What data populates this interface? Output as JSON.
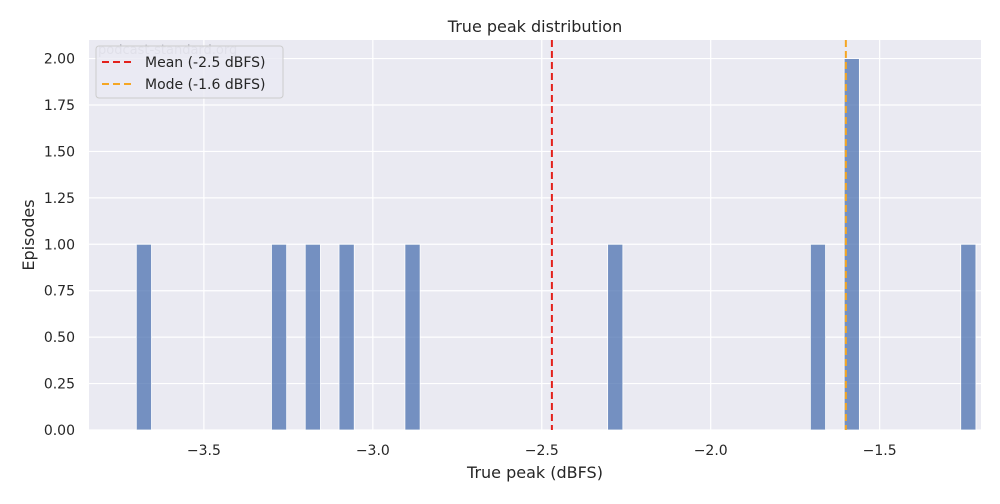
{
  "chart_data": {
    "type": "bar",
    "title": "True peak distribution",
    "xlabel": "True peak (dBFS)",
    "ylabel": "Episodes",
    "xlim": [
      -3.84,
      -1.2
    ],
    "ylim": [
      0,
      2.1
    ],
    "x_ticks": [
      {
        "value": -3.5,
        "label": "−3.5"
      },
      {
        "value": -3.0,
        "label": "−3.0"
      },
      {
        "value": -2.5,
        "label": "−2.5"
      },
      {
        "value": -2.0,
        "label": "−2.0"
      },
      {
        "value": -1.5,
        "label": "−1.5"
      }
    ],
    "y_ticks": [
      {
        "value": 0,
        "label": "0.00"
      },
      {
        "value": 0.25,
        "label": "0.25"
      },
      {
        "value": 0.5,
        "label": "0.50"
      },
      {
        "value": 0.75,
        "label": "0.75"
      },
      {
        "value": 1.0,
        "label": "1.00"
      },
      {
        "value": 1.25,
        "label": "1.25"
      },
      {
        "value": 1.5,
        "label": "1.50"
      },
      {
        "value": 1.75,
        "label": "1.75"
      },
      {
        "value": 2.0,
        "label": "2.00"
      }
    ],
    "bins": [
      {
        "x0": -3.7,
        "x1": -3.655,
        "count": 1
      },
      {
        "x0": -3.3,
        "x1": -3.255,
        "count": 1
      },
      {
        "x0": -3.2,
        "x1": -3.155,
        "count": 1
      },
      {
        "x0": -3.1,
        "x1": -3.055,
        "count": 1
      },
      {
        "x0": -2.905,
        "x1": -2.86,
        "count": 1
      },
      {
        "x0": -2.305,
        "x1": -2.26,
        "count": 1
      },
      {
        "x0": -1.705,
        "x1": -1.66,
        "count": 1
      },
      {
        "x0": -1.605,
        "x1": -1.56,
        "count": 2
      },
      {
        "x0": -1.26,
        "x1": -1.215,
        "count": 1
      }
    ],
    "reference_lines": [
      {
        "label": "Mean (-2.5 dBFS)",
        "value": -2.47,
        "color": "#e3211c",
        "style": "dashed"
      },
      {
        "label": "Mode (-1.6 dBFS)",
        "value": -1.6,
        "color": "#f5a623",
        "style": "dashed"
      }
    ],
    "bar_color": "#4c72b0",
    "background_color": "#eaeaf2",
    "grid": true,
    "legend_position": "top-left",
    "watermark": "podcast-standard.org"
  }
}
